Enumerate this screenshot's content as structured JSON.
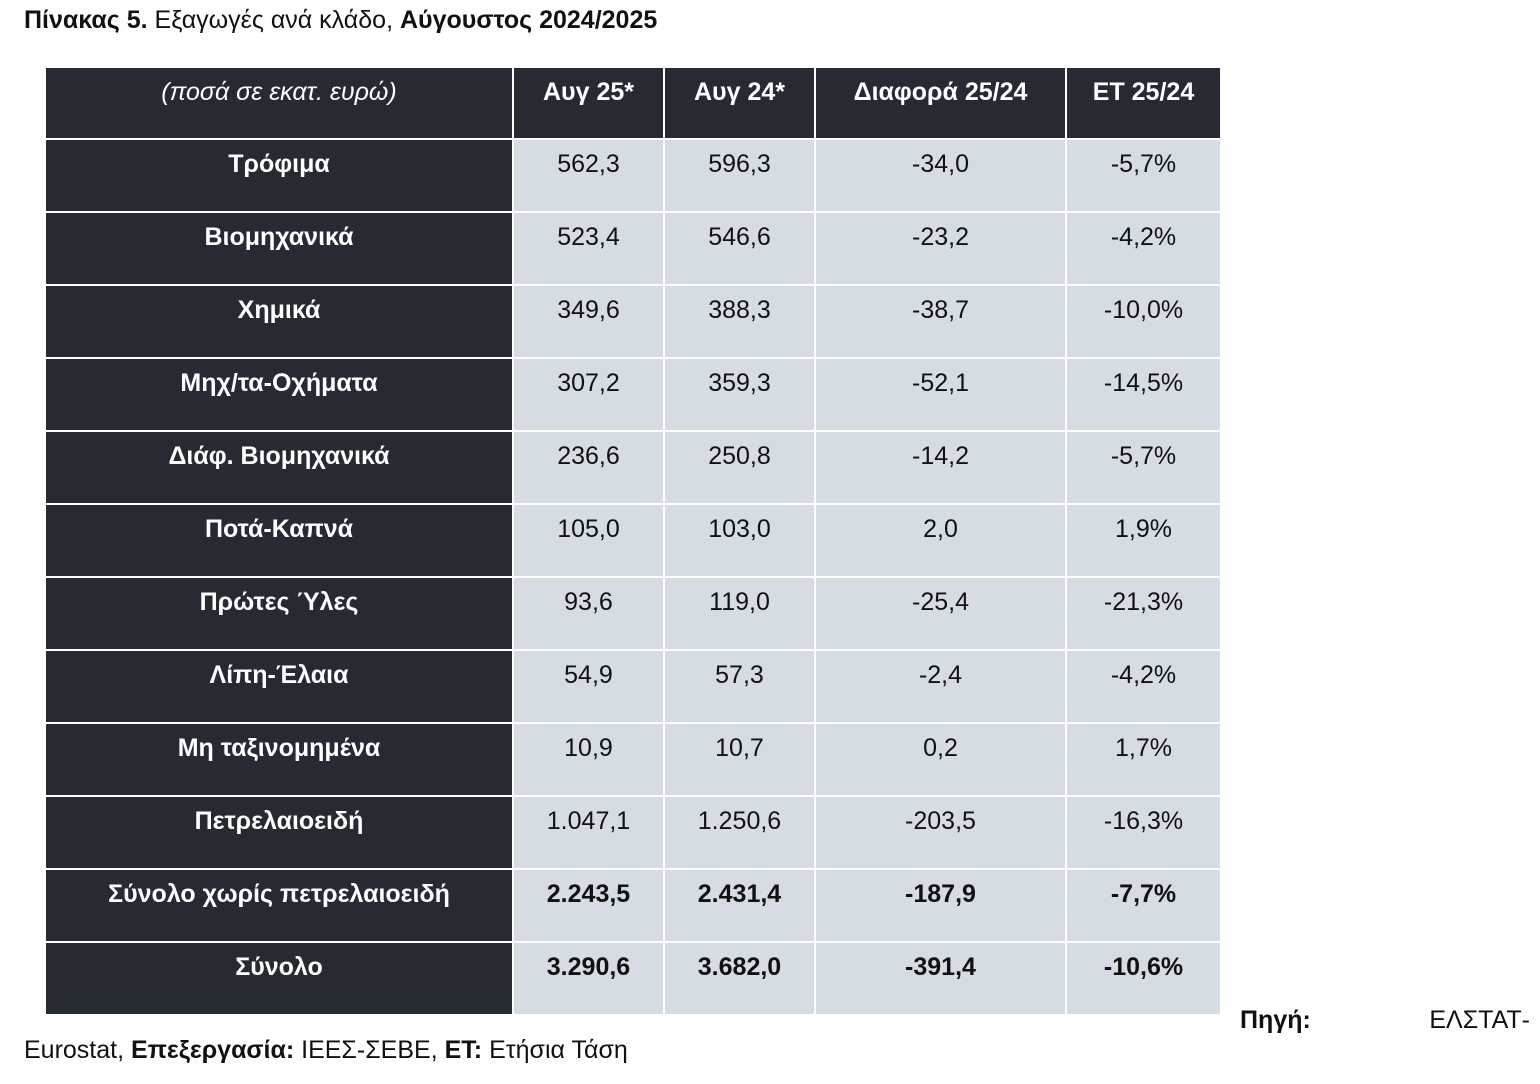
{
  "title": {
    "label": "Πίνακας 5.",
    "text": "Εξαγωγές ανά κλάδο,",
    "period": "Αύγουστος 2024/2025"
  },
  "table": {
    "header": [
      "(ποσά σε εκατ. ευρώ)",
      "Αυγ 25*",
      "Αυγ 24*",
      "Διαφορά 25/24",
      "ΕΤ 25/24"
    ],
    "rows": [
      [
        "Τρόφιμα",
        "562,3",
        "596,3",
        "-34,0",
        "-5,7%"
      ],
      [
        "Βιομηχανικά",
        "523,4",
        "546,6",
        "-23,2",
        "-4,2%"
      ],
      [
        "Χημικά",
        "349,6",
        "388,3",
        "-38,7",
        "-10,0%"
      ],
      [
        "Μηχ/τα-Οχήματα",
        "307,2",
        "359,3",
        "-52,1",
        "-14,5%"
      ],
      [
        "Διάφ. Βιομηχανικά",
        "236,6",
        "250,8",
        "-14,2",
        "-5,7%"
      ],
      [
        "Ποτά-Καπνά",
        "105,0",
        "103,0",
        "2,0",
        "1,9%"
      ],
      [
        "Πρώτες Ύλες",
        "93,6",
        "119,0",
        "-25,4",
        "-21,3%"
      ],
      [
        "Λίπη-Έλαια",
        "54,9",
        "57,3",
        "-2,4",
        "-4,2%"
      ],
      [
        "Μη ταξινομημένα",
        "10,9",
        "10,7",
        "0,2",
        "1,7%"
      ],
      [
        "Πετρελαιοειδή",
        "1.047,1",
        "1.250,6",
        "-203,5",
        "-16,3%"
      ],
      [
        "Σύνολο χωρίς πετρελαιοειδή",
        "2.243,5",
        "2.431,4",
        "-187,9",
        "-7,7%"
      ],
      [
        "Σύνολο",
        "3.290,6",
        "3.682,0",
        "-391,4",
        "-10,6%"
      ]
    ]
  },
  "footer": {
    "source_label": "Πηγή:",
    "source_1": "ΕΛΣΤΑΤ-",
    "source_2": "Eurostat,",
    "processing_label": "Επεξεργασία:",
    "processing": "ΙΕΕΣ-ΣΕΒΕ,",
    "et_label": "ΕΤ:",
    "et": "Ετήσια Τάση"
  }
}
